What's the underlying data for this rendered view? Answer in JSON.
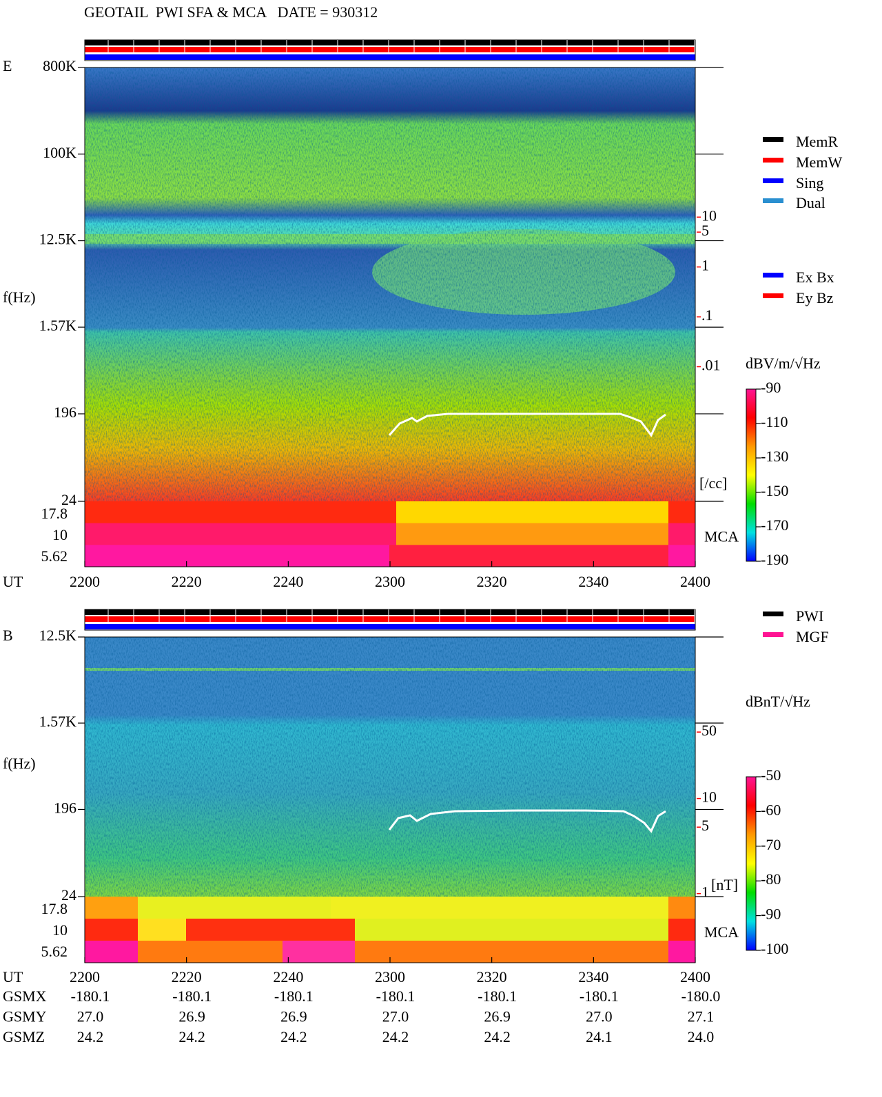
{
  "title": "GEOTAIL  PWI SFA & MCA   DATE = 930312",
  "chart_data": [
    {
      "type": "spectrogram",
      "panel_label": "E",
      "y_label": "f(Hz)",
      "log_y": true,
      "ylim": [
        24,
        800000
      ],
      "yticks": [
        {
          "value": 800000,
          "label": "800K"
        },
        {
          "value": 100000,
          "label": "100K"
        },
        {
          "value": 12500,
          "label": "12.5K"
        },
        {
          "value": 1570,
          "label": "1.57K"
        },
        196,
        24
      ],
      "mca_label": "MCA",
      "mca_channels": [
        17.8,
        10,
        5.62
      ],
      "x_label": "UT",
      "x": [
        "2200",
        "2220",
        "2240",
        "2300",
        "2320",
        "2340",
        "2400"
      ],
      "y2_log": true,
      "y2lim": [
        2e-05,
        10000
      ],
      "y2_color": "#ff0000",
      "y2ticks": [
        10,
        5,
        1,
        {
          "value": 0.1,
          "label": ".1"
        },
        {
          "value": 0.01,
          "label": ".01"
        }
      ],
      "y2_unit": "[/cc]",
      "legend": [
        {
          "name": "MemR",
          "color": "#000000"
        },
        {
          "name": "MemW",
          "color": "#ff0000"
        },
        {
          "name": "Sing",
          "color": "#0000ff"
        },
        {
          "name": "Dual",
          "color": "#2a8fd0"
        }
      ],
      "legend2": [
        {
          "name": "Ex Bx",
          "color": "#0000ff"
        },
        {
          "name": "Ey Bz",
          "color": "#ff0000"
        }
      ],
      "colorbar": {
        "label": "dBV/m/√Hz",
        "lim": [
          -190,
          -90
        ],
        "ticks": [
          -90,
          -110,
          -130,
          -150,
          -170,
          -190
        ],
        "colors": [
          "#ff1493",
          "#ff0000",
          "#ff9900",
          "#ffff00",
          "#00dd00",
          "#00e0e0",
          "#0000ff"
        ]
      }
    },
    {
      "type": "spectrogram",
      "panel_label": "B",
      "y_label": "f(Hz)",
      "log_y": true,
      "ylim": [
        24,
        12500
      ],
      "yticks": [
        {
          "value": 12500,
          "label": "12.5K"
        },
        {
          "value": 1570,
          "label": "1.57K"
        },
        196,
        24
      ],
      "mca_label": "MCA",
      "mca_channels": [
        17.8,
        10,
        5.62
      ],
      "x_label": "UT",
      "x": [
        "2200",
        "2220",
        "2240",
        "2300",
        "2320",
        "2340",
        "2400"
      ],
      "y2_log": true,
      "y2lim": [
        0.93,
        500
      ],
      "y2_color": "#ff0000",
      "y2ticks": [
        50,
        10,
        5,
        1
      ],
      "y2_unit": "[nT]",
      "legend": [
        {
          "name": "PWI",
          "color": "#000000"
        },
        {
          "name": "MGF",
          "color": "#ff1493"
        }
      ],
      "colorbar": {
        "label": "dBnT/√Hz",
        "lim": [
          -100,
          -50
        ],
        "ticks": [
          -50,
          -60,
          -70,
          -80,
          -90,
          -100
        ],
        "colors": [
          "#ff1493",
          "#ff0000",
          "#ff9900",
          "#ffff00",
          "#00dd00",
          "#00e0e0",
          "#0000ff"
        ]
      }
    }
  ],
  "orbit_table": {
    "rows": [
      {
        "label": "GSMX",
        "values": [
          "-180.1",
          "-180.1",
          "-180.1",
          "-180.1",
          "-180.1",
          "-180.1",
          "-180.0"
        ]
      },
      {
        "label": "GSMY",
        "values": [
          "27.0",
          "26.9",
          "26.9",
          "27.0",
          "26.9",
          "27.0",
          "27.1"
        ]
      },
      {
        "label": "GSMZ",
        "values": [
          "24.2",
          "24.2",
          "24.2",
          "24.2",
          "24.2",
          "24.1",
          "24.0"
        ]
      }
    ]
  }
}
